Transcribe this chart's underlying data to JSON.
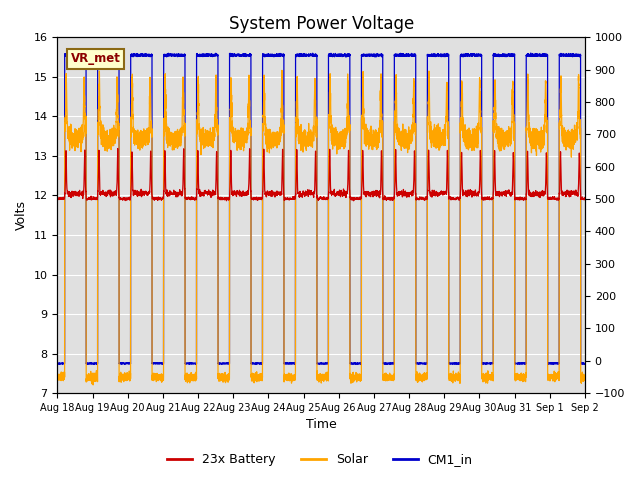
{
  "title": "System Power Voltage",
  "xlabel": "Time",
  "ylabel": "Volts",
  "ylim_left": [
    7.0,
    16.0
  ],
  "ylim_right": [
    -100,
    1000
  ],
  "yticks_left": [
    7.0,
    8.0,
    9.0,
    10.0,
    11.0,
    12.0,
    13.0,
    14.0,
    15.0,
    16.0
  ],
  "yticks_right": [
    -100,
    0,
    100,
    200,
    300,
    400,
    500,
    600,
    700,
    800,
    900,
    1000
  ],
  "xtick_labels": [
    "Aug 18",
    "Aug 19",
    "Aug 20",
    "Aug 21",
    "Aug 22",
    "Aug 23",
    "Aug 24",
    "Aug 25",
    "Aug 26",
    "Aug 27",
    "Aug 28",
    "Aug 29",
    "Aug 30",
    "Aug 31",
    "Sep 1",
    "Sep 2"
  ],
  "n_days": 16,
  "color_battery": "#cc0000",
  "color_solar": "#ffa500",
  "color_cm1": "#0000cc",
  "background_color": "#e0e0e0",
  "grid_color": "#ffffff",
  "vr_met_label": "VR_met",
  "legend_labels": [
    "23x Battery",
    "Solar",
    "CM1_in"
  ],
  "title_fontsize": 12,
  "axis_fontsize": 9,
  "tick_fontsize": 8
}
